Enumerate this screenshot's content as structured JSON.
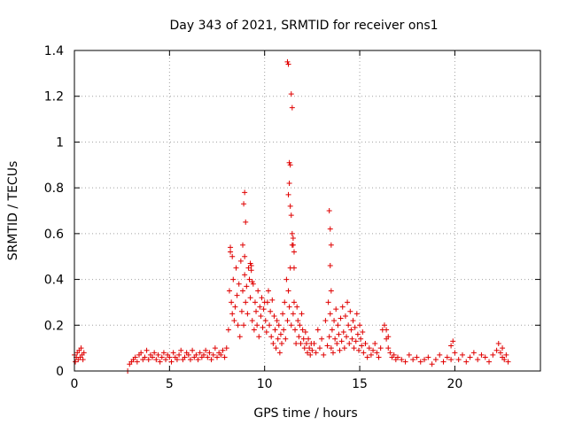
{
  "chart_data": {
    "type": "scatter",
    "title": "Day 343 of 2021, SRMTID for receiver ons1",
    "xlabel": "GPS time / hours",
    "ylabel": "SRMTID / TECUs",
    "xlim": [
      0,
      24.5
    ],
    "ylim": [
      0,
      1.4
    ],
    "xticks": [
      0,
      5,
      10,
      15,
      20
    ],
    "xtick_labels": [
      "0",
      "5",
      "10",
      "15",
      "20"
    ],
    "yticks": [
      0,
      0.2,
      0.4,
      0.6,
      0.8,
      1.0,
      1.2,
      1.4
    ],
    "ytick_labels": [
      "0",
      "0.2",
      "0.4",
      "0.6",
      "0.8",
      "1",
      "1.2",
      "1.4"
    ],
    "grid": true,
    "marker": "plus",
    "color": "#e00000",
    "series": [
      {
        "name": "SRMTID",
        "x": [
          0.0,
          0.05,
          0.1,
          0.15,
          0.2,
          0.25,
          0.3,
          0.35,
          0.4,
          0.45,
          0.5,
          2.8,
          2.9,
          3.0,
          3.1,
          3.2,
          3.3,
          3.4,
          3.5,
          3.6,
          3.7,
          3.8,
          3.9,
          4.0,
          4.1,
          4.2,
          4.3,
          4.4,
          4.5,
          4.6,
          4.7,
          4.8,
          4.9,
          5.0,
          5.1,
          5.2,
          5.3,
          5.4,
          5.5,
          5.6,
          5.7,
          5.8,
          5.9,
          6.0,
          6.1,
          6.2,
          6.3,
          6.4,
          6.5,
          6.6,
          6.7,
          6.8,
          6.9,
          7.0,
          7.1,
          7.2,
          7.3,
          7.4,
          7.5,
          7.6,
          7.7,
          7.8,
          7.9,
          8.0,
          8.1,
          8.15,
          8.2,
          8.25,
          8.3,
          8.35,
          8.4,
          8.45,
          8.5,
          8.55,
          8.6,
          8.65,
          8.7,
          8.75,
          8.8,
          8.85,
          8.9,
          8.95,
          9.0,
          9.05,
          9.1,
          9.15,
          9.2,
          9.25,
          9.3,
          9.35,
          9.4,
          9.45,
          9.5,
          9.55,
          9.6,
          9.65,
          9.7,
          9.75,
          9.8,
          9.85,
          9.9,
          9.95,
          10.0,
          10.05,
          10.1,
          10.15,
          10.2,
          10.25,
          10.3,
          10.35,
          10.4,
          10.45,
          10.5,
          10.55,
          10.6,
          10.65,
          10.7,
          10.75,
          10.8,
          10.85,
          10.9,
          10.95,
          11.0,
          11.05,
          11.1,
          11.15,
          11.2,
          11.25,
          11.3,
          11.35,
          11.4,
          11.45,
          11.5,
          11.55,
          11.6,
          11.65,
          11.7,
          11.75,
          11.8,
          11.85,
          11.9,
          11.95,
          12.0,
          12.05,
          12.1,
          12.15,
          12.2,
          12.25,
          12.3,
          12.35,
          12.4,
          12.45,
          12.5,
          12.6,
          12.7,
          12.8,
          12.9,
          13.0,
          13.1,
          13.2,
          13.3,
          13.35,
          13.4,
          13.45,
          13.5,
          13.55,
          13.6,
          13.65,
          13.7,
          13.75,
          13.8,
          13.85,
          13.9,
          13.95,
          14.0,
          14.05,
          14.1,
          14.15,
          14.2,
          14.25,
          14.3,
          14.35,
          14.4,
          14.45,
          14.5,
          14.55,
          14.6,
          14.65,
          14.7,
          14.75,
          14.8,
          14.85,
          14.9,
          14.95,
          15.0,
          15.05,
          15.1,
          15.15,
          15.2,
          15.3,
          15.4,
          15.5,
          15.6,
          15.7,
          15.8,
          15.9,
          16.0,
          16.1,
          16.2,
          16.3,
          16.4,
          16.5,
          16.6,
          16.7,
          16.8,
          16.9,
          17.0,
          17.2,
          17.4,
          17.6,
          17.8,
          18.0,
          18.2,
          18.4,
          18.6,
          18.8,
          19.0,
          19.2,
          19.4,
          19.6,
          19.8,
          20.0,
          20.2,
          20.4,
          20.6,
          20.8,
          21.0,
          21.2,
          21.4,
          21.6,
          21.8,
          22.0,
          22.2,
          22.3,
          22.4,
          22.5,
          22.6,
          22.7,
          22.8,
          8.95,
          8.9,
          9.0,
          8.95,
          11.3,
          11.35,
          11.3,
          11.25,
          11.35,
          11.4,
          11.45,
          11.5,
          11.55,
          11.2,
          11.25,
          13.4,
          13.45,
          13.5,
          13.45,
          13.5,
          11.4,
          11.45,
          11.5,
          11.55,
          8.2,
          8.3,
          8.85,
          9.25,
          9.3,
          9.35,
          16.4,
          16.5,
          22.5,
          19.8,
          19.9
        ],
        "y": [
          0.07,
          0.04,
          0.06,
          0.08,
          0.05,
          0.09,
          0.06,
          0.1,
          0.07,
          0.05,
          0.08,
          0.0,
          0.03,
          0.04,
          0.05,
          0.06,
          0.04,
          0.07,
          0.08,
          0.05,
          0.06,
          0.09,
          0.05,
          0.07,
          0.06,
          0.08,
          0.05,
          0.07,
          0.04,
          0.06,
          0.08,
          0.05,
          0.07,
          0.06,
          0.04,
          0.08,
          0.06,
          0.05,
          0.07,
          0.09,
          0.05,
          0.06,
          0.08,
          0.07,
          0.05,
          0.09,
          0.06,
          0.07,
          0.05,
          0.08,
          0.06,
          0.07,
          0.09,
          0.06,
          0.08,
          0.05,
          0.07,
          0.1,
          0.06,
          0.08,
          0.07,
          0.09,
          0.06,
          0.1,
          0.18,
          0.35,
          0.52,
          0.3,
          0.25,
          0.4,
          0.22,
          0.28,
          0.45,
          0.33,
          0.2,
          0.38,
          0.15,
          0.48,
          0.26,
          0.35,
          0.2,
          0.42,
          0.3,
          0.37,
          0.25,
          0.45,
          0.4,
          0.32,
          0.46,
          0.22,
          0.38,
          0.18,
          0.3,
          0.26,
          0.2,
          0.35,
          0.15,
          0.28,
          0.24,
          0.32,
          0.19,
          0.27,
          0.3,
          0.22,
          0.17,
          0.3,
          0.35,
          0.2,
          0.26,
          0.15,
          0.31,
          0.12,
          0.24,
          0.18,
          0.1,
          0.22,
          0.14,
          0.2,
          0.08,
          0.16,
          0.12,
          0.25,
          0.18,
          0.3,
          0.14,
          0.4,
          0.22,
          0.35,
          0.28,
          0.45,
          0.2,
          0.55,
          0.25,
          0.3,
          0.18,
          0.12,
          0.28,
          0.22,
          0.15,
          0.2,
          0.12,
          0.25,
          0.18,
          0.14,
          0.1,
          0.17,
          0.12,
          0.08,
          0.14,
          0.1,
          0.07,
          0.12,
          0.09,
          0.12,
          0.08,
          0.18,
          0.1,
          0.14,
          0.07,
          0.22,
          0.11,
          0.3,
          0.15,
          0.25,
          0.1,
          0.18,
          0.08,
          0.22,
          0.14,
          0.27,
          0.12,
          0.2,
          0.16,
          0.09,
          0.23,
          0.13,
          0.28,
          0.17,
          0.1,
          0.24,
          0.15,
          0.3,
          0.2,
          0.12,
          0.26,
          0.18,
          0.14,
          0.22,
          0.1,
          0.19,
          0.13,
          0.25,
          0.16,
          0.09,
          0.2,
          0.14,
          0.11,
          0.17,
          0.08,
          0.12,
          0.06,
          0.1,
          0.07,
          0.09,
          0.12,
          0.08,
          0.06,
          0.1,
          0.18,
          0.2,
          0.14,
          0.1,
          0.08,
          0.06,
          0.07,
          0.05,
          0.06,
          0.05,
          0.04,
          0.07,
          0.05,
          0.06,
          0.04,
          0.05,
          0.06,
          0.03,
          0.05,
          0.07,
          0.04,
          0.06,
          0.05,
          0.08,
          0.05,
          0.07,
          0.04,
          0.06,
          0.08,
          0.05,
          0.07,
          0.06,
          0.04,
          0.07,
          0.09,
          0.12,
          0.08,
          0.06,
          0.05,
          0.07,
          0.04,
          0.78,
          0.73,
          0.65,
          0.5,
          0.91,
          0.9,
          0.82,
          0.77,
          0.72,
          0.68,
          0.6,
          0.55,
          0.52,
          1.35,
          1.34,
          0.7,
          0.62,
          0.55,
          0.46,
          0.35,
          1.21,
          1.15,
          0.58,
          0.45,
          0.54,
          0.5,
          0.55,
          0.47,
          0.44,
          0.39,
          0.18,
          0.15,
          0.1,
          0.11,
          0.13
        ]
      }
    ]
  }
}
